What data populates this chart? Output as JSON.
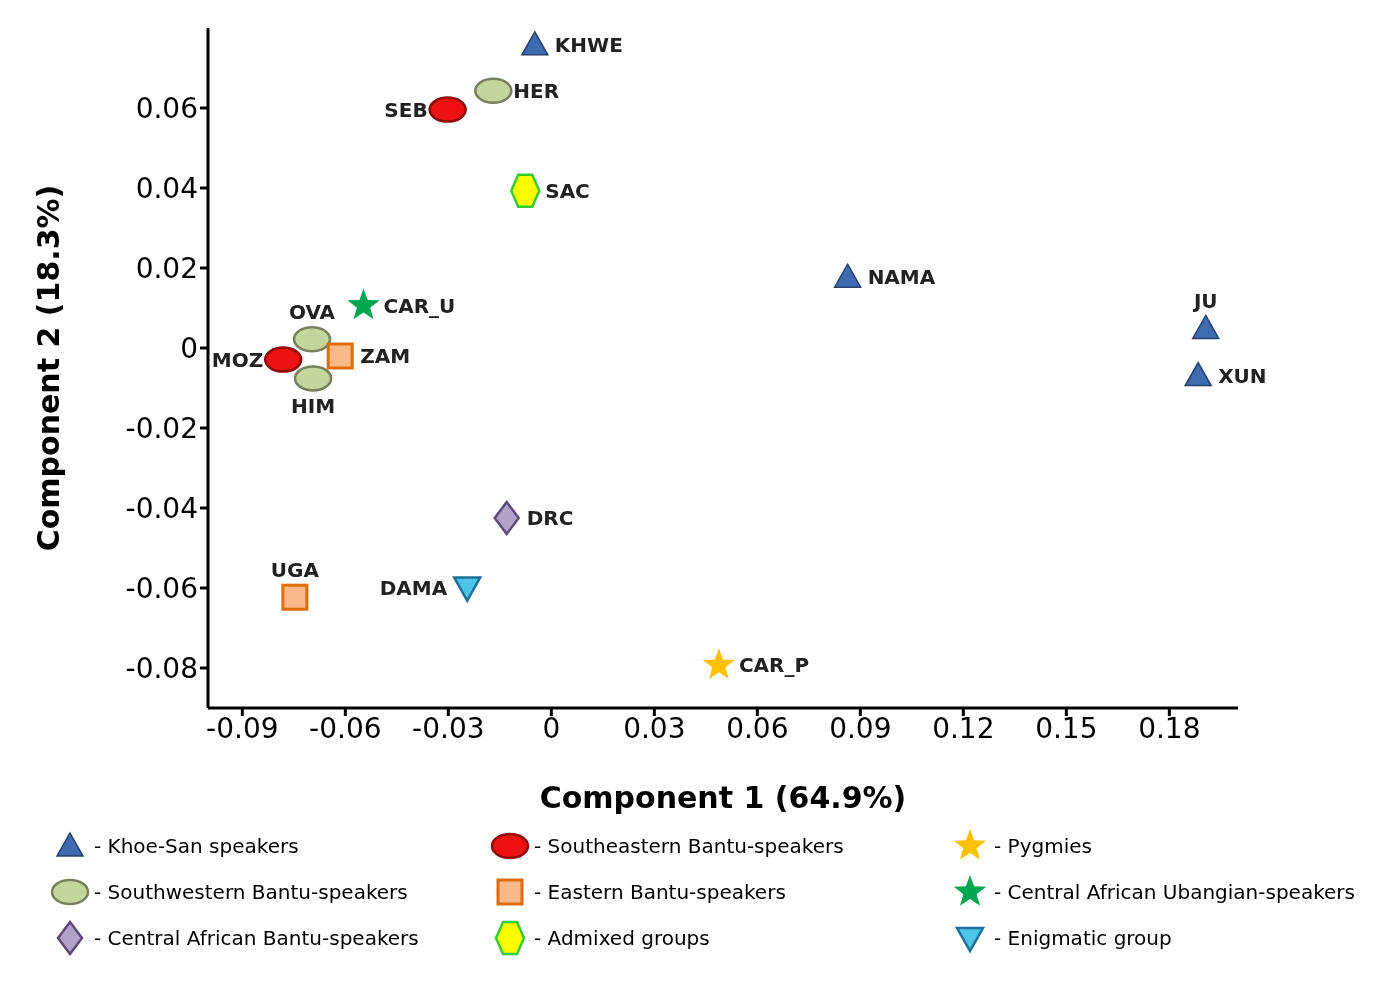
{
  "chart_data": {
    "type": "scatter",
    "xlabel": "Component 1 (64.9%)",
    "ylabel": "Component 2 (18.3%)",
    "xlim": [
      -0.1,
      0.2
    ],
    "xticks": [
      -0.09,
      -0.06,
      -0.03,
      0,
      0.03,
      0.06,
      0.09,
      0.12,
      0.15,
      0.18
    ],
    "ylim": [
      -0.09,
      0.08
    ],
    "yticks": [
      -0.08,
      -0.06,
      -0.04,
      -0.02,
      0,
      0.02,
      0.04,
      0.06
    ],
    "grid": false,
    "legend": "bottom",
    "series": [
      {
        "name": "- Khoe-San speakers",
        "color": "#3d6bb0",
        "marker": "triangle",
        "x": [
          -0.0048,
          0.0863,
          0.1906,
          0.1884
        ],
        "values": [
          0.0758,
          0.0177,
          0.0049,
          -0.0069
        ]
      },
      {
        "name": "- Southeastern Bantu-speakers",
        "color": "#ee1111",
        "marker": "circle",
        "x": [
          -0.0302,
          -0.0781
        ],
        "values": [
          0.0596,
          -0.0029
        ]
      },
      {
        "name": "- Pygmies",
        "color": "#ffc000",
        "marker": "star",
        "x": [
          0.0488
        ],
        "values": [
          -0.0793
        ]
      },
      {
        "name": "- Southwestern Bantu-speakers",
        "color": "#c3d69b",
        "marker": "circle",
        "x": [
          -0.0169,
          -0.0697,
          -0.0694
        ],
        "values": [
          0.0643,
          0.0022,
          -0.0076
        ]
      },
      {
        "name": "- Eastern Bantu-speakers",
        "color": "#f9b88a",
        "marker": "square",
        "x": [
          -0.0615,
          -0.0747
        ],
        "values": [
          -0.002,
          -0.0623
        ]
      },
      {
        "name": "- Central African Ubangian-speakers",
        "color": "#00a650",
        "marker": "star",
        "x": [
          -0.0547
        ],
        "values": [
          0.0106
        ]
      },
      {
        "name": "- Central African Bantu-speakers",
        "color": "#b3a2c7",
        "marker": "diamond",
        "x": [
          -0.013
        ],
        "values": [
          -0.0425
        ]
      },
      {
        "name": "- Admixed groups",
        "color": "#ffff00",
        "x": [
          -0.0076
        ],
        "values": [
          0.0393
        ]
      },
      {
        "name": "- Enigmatic group",
        "color": "#4bc6e8",
        "marker": "triangle-down",
        "x": [
          -0.0245
        ],
        "values": [
          -0.0599
        ]
      }
    ],
    "annotations": [
      {
        "text": "KHWE",
        "x": -0.0048,
        "y": 0.0758
      },
      {
        "text": "HER",
        "x": -0.0169,
        "y": 0.0643
      },
      {
        "text": "SEB",
        "x": -0.0302,
        "y": 0.0596
      },
      {
        "text": "SAC",
        "x": -0.0076,
        "y": 0.0393
      },
      {
        "text": "NAMA",
        "x": 0.0863,
        "y": 0.0177
      },
      {
        "text": "JU",
        "x": 0.1906,
        "y": 0.0049
      },
      {
        "text": "XUN",
        "x": 0.1884,
        "y": -0.0069
      },
      {
        "text": "CAR_U",
        "x": -0.0547,
        "y": 0.0106
      },
      {
        "text": "OVA",
        "x": -0.0697,
        "y": 0.0022
      },
      {
        "text": "MOZ",
        "x": -0.0781,
        "y": -0.0029
      },
      {
        "text": "ZAM",
        "x": -0.0615,
        "y": -0.002
      },
      {
        "text": "HIM",
        "x": -0.0694,
        "y": -0.0076
      },
      {
        "text": "DRC",
        "x": -0.013,
        "y": -0.0425
      },
      {
        "text": "UGA",
        "x": -0.0747,
        "y": -0.0623
      },
      {
        "text": "DAMA",
        "x": -0.0245,
        "y": -0.0599
      },
      {
        "text": "CAR_P",
        "x": 0.0488,
        "y": -0.0793
      }
    ]
  }
}
